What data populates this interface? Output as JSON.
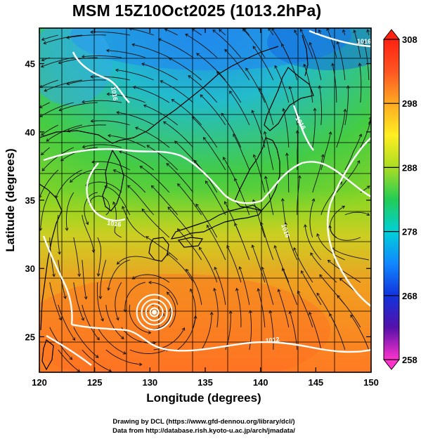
{
  "title": "MSM 15Z10Oct2025 (1013.2hPa)",
  "x_axis": {
    "label": "Longitude (degrees)",
    "ticks": [
      "120",
      "125",
      "130",
      "135",
      "140",
      "145",
      "150"
    ],
    "range": [
      120,
      150
    ]
  },
  "y_axis": {
    "label": "Latitude  (degrees)",
    "ticks": [
      "25",
      "30",
      "35",
      "40",
      "45"
    ],
    "range": [
      22.4,
      47.6
    ]
  },
  "colorbar": {
    "ticks": [
      "258",
      "268",
      "278",
      "288",
      "298",
      "308"
    ],
    "min": 258,
    "max": 308,
    "colors": [
      "#ff33cc",
      "#5511aa",
      "#1133dd",
      "#1188ff",
      "#00d0d8",
      "#22cc55",
      "#aadd22",
      "#ffee22",
      "#ffaa22",
      "#ff5522",
      "#ff2211"
    ]
  },
  "isobars": {
    "labels": [
      "1016",
      "1016",
      "1016",
      "1016",
      "1016",
      "1012"
    ],
    "color": "#ffffff"
  },
  "typhoon_center": {
    "lon": 130.4,
    "lat": 26.8
  },
  "credits": [
    "Drawing by DCL (https://www.gfd-dennou.org/library/dcl/)",
    "Data from http://database.rish.kyoto-u.ac.jp/arch/jmadata/"
  ]
}
